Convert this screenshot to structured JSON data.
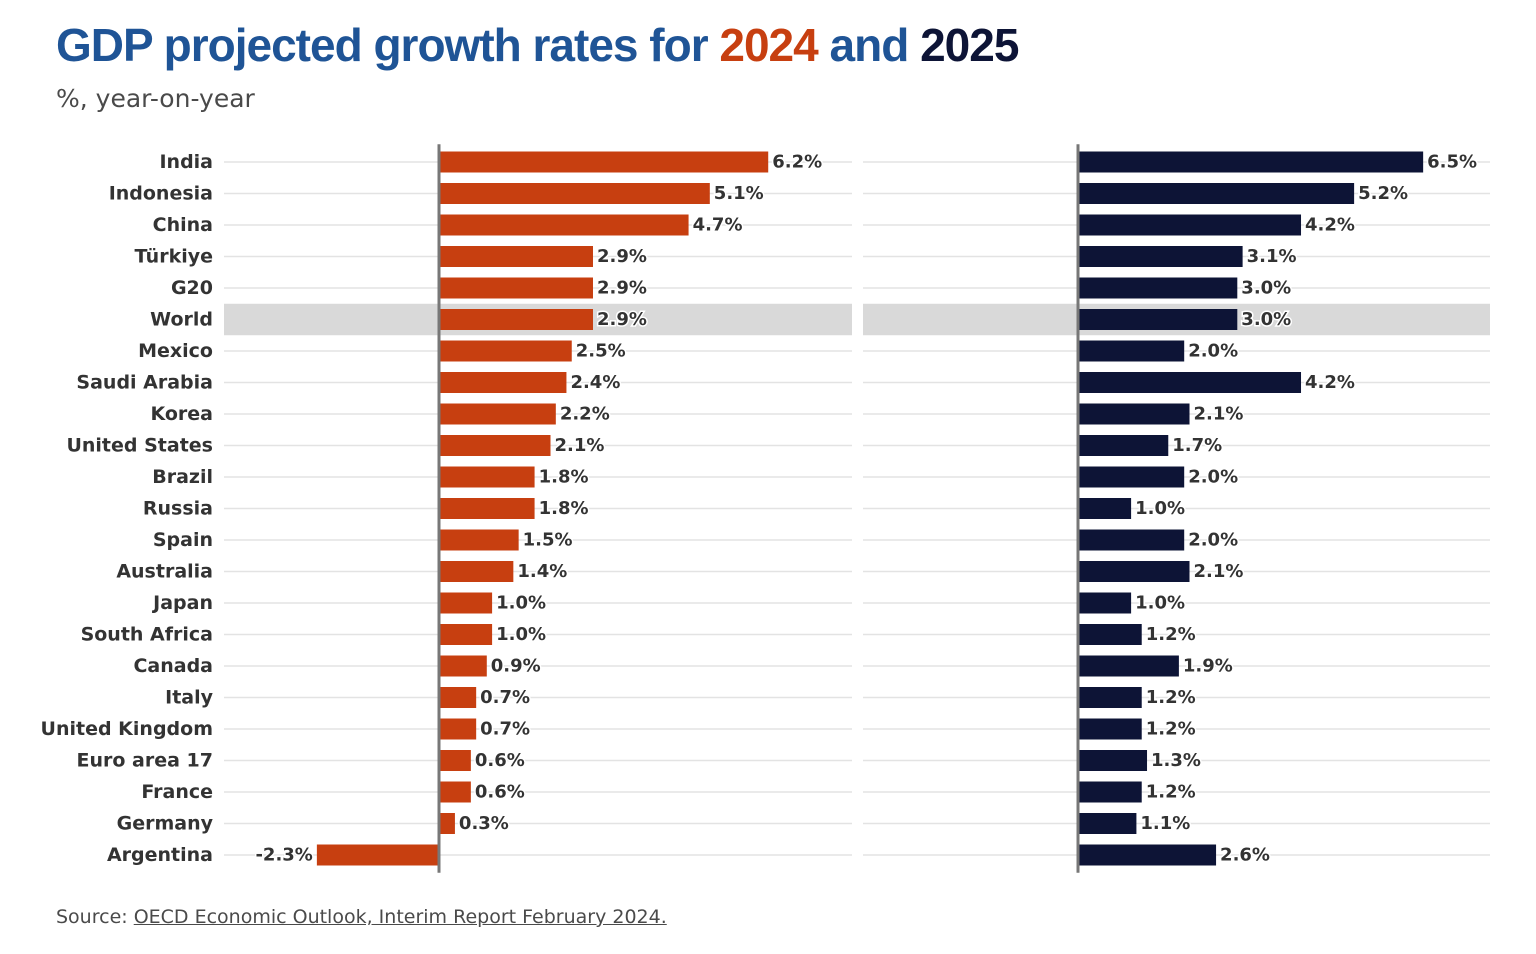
{
  "title": {
    "part1": "GDP projected growth rates for ",
    "year1": "2024",
    "part2": " and ",
    "year2": "2025",
    "color_main": "#1f5496",
    "color_2024": "#c73f10",
    "color_2025": "#0d1436"
  },
  "subtitle": "%, year-on-year",
  "source": {
    "prefix": "Source: ",
    "link_text": "OECD Economic Outlook, Interim Report February 2024."
  },
  "chart_data": {
    "type": "bar",
    "orientation": "horizontal",
    "categories": [
      "India",
      "Indonesia",
      "China",
      "Türkiye",
      "G20",
      "World",
      "Mexico",
      "Saudi Arabia",
      "Korea",
      "United States",
      "Brazil",
      "Russia",
      "Spain",
      "Australia",
      "Japan",
      "South Africa",
      "Canada",
      "Italy",
      "United Kingdom",
      "Euro area 17",
      "France",
      "Germany",
      "Argentina"
    ],
    "highlight": "World",
    "series": [
      {
        "name": "2024",
        "color": "#c73f10",
        "values": [
          6.2,
          5.1,
          4.7,
          2.9,
          2.9,
          2.9,
          2.5,
          2.4,
          2.2,
          2.1,
          1.8,
          1.8,
          1.5,
          1.4,
          1.0,
          1.0,
          0.9,
          0.7,
          0.7,
          0.6,
          0.6,
          0.3,
          -2.3
        ],
        "labels": [
          "6.2%",
          "5.1%",
          "4.7%",
          "2.9%",
          "2.9%",
          "2.9%",
          "2.5%",
          "2.4%",
          "2.2%",
          "2.1%",
          "1.8%",
          "1.8%",
          "1.5%",
          "1.4%",
          "1.0%",
          "1.0%",
          "0.9%",
          "0.7%",
          "0.7%",
          "0.6%",
          "0.6%",
          "0.3%",
          "-2.3%"
        ]
      },
      {
        "name": "2025",
        "color": "#0d1436",
        "values": [
          6.5,
          5.2,
          4.2,
          3.1,
          3.0,
          3.0,
          2.0,
          4.2,
          2.1,
          1.7,
          2.0,
          1.0,
          2.0,
          2.1,
          1.0,
          1.2,
          1.9,
          1.2,
          1.2,
          1.3,
          1.2,
          1.1,
          2.6
        ],
        "labels": [
          "6.5%",
          "5.2%",
          "4.2%",
          "3.1%",
          "3.0%",
          "3.0%",
          "2.0%",
          "4.2%",
          "2.1%",
          "1.7%",
          "2.0%",
          "1.0%",
          "2.0%",
          "2.1%",
          "1.0%",
          "1.2%",
          "1.9%",
          "1.2%",
          "1.2%",
          "1.3%",
          "1.2%",
          "1.1%",
          "2.6%"
        ]
      }
    ],
    "grid": true,
    "legend": "none"
  }
}
